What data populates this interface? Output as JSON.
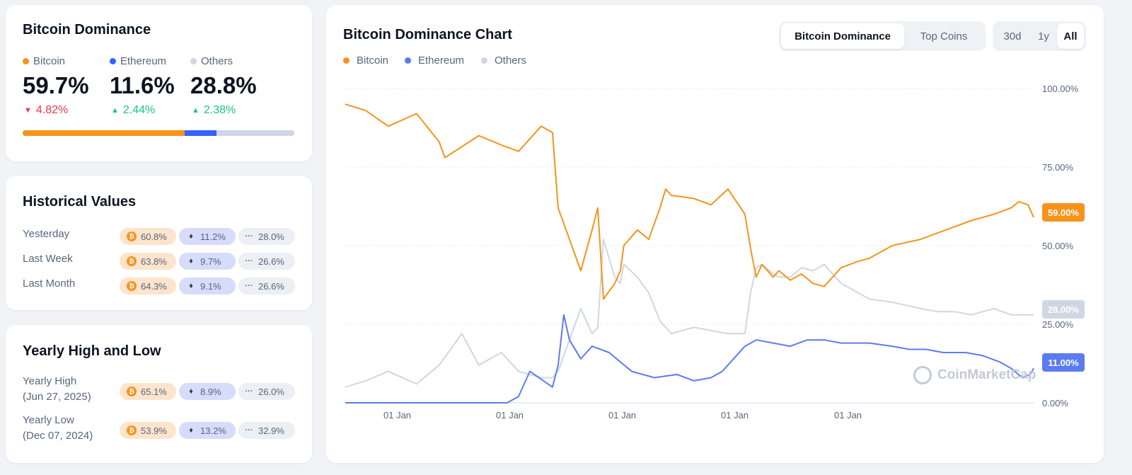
{
  "dominance": {
    "title": "Bitcoin Dominance",
    "items": [
      {
        "name": "Bitcoin",
        "value": "59.7%",
        "change": "4.82%",
        "direction": "down",
        "color": "#f7931a"
      },
      {
        "name": "Ethereum",
        "value": "11.6%",
        "change": "2.44%",
        "direction": "up",
        "color": "#3861fb"
      },
      {
        "name": "Others",
        "value": "28.8%",
        "change": "2.38%",
        "direction": "up",
        "color": "#cfd6e4"
      }
    ],
    "bar_shares": [
      59.7,
      11.6,
      28.8
    ]
  },
  "historical": {
    "title": "Historical Values",
    "rows": [
      {
        "label": "Yesterday",
        "btc": "60.8%",
        "eth": "11.2%",
        "others": "28.0%"
      },
      {
        "label": "Last Week",
        "btc": "63.8%",
        "eth": "9.7%",
        "others": "26.6%"
      },
      {
        "label": "Last Month",
        "btc": "64.3%",
        "eth": "9.1%",
        "others": "26.6%"
      }
    ]
  },
  "yearly": {
    "title": "Yearly High and Low",
    "rows": [
      {
        "label": "Yearly High",
        "date": "(Jun 27, 2025)",
        "btc": "65.1%",
        "eth": "8.9%",
        "others": "26.0%"
      },
      {
        "label": "Yearly Low",
        "date": "(Dec 07, 2024)",
        "btc": "53.9%",
        "eth": "13.2%",
        "others": "32.9%"
      }
    ]
  },
  "chart_panel": {
    "title": "Bitcoin Dominance Chart",
    "view_tabs": [
      "Bitcoin Dominance",
      "Top Coins"
    ],
    "active_view": 0,
    "range_tabs": [
      "30d",
      "1y",
      "All"
    ],
    "active_range": 2,
    "legend": [
      "Bitcoin",
      "Ethereum",
      "Others"
    ],
    "watermark": "CoinMarketCap",
    "badges": {
      "btc": "59.00%",
      "others": "28.00%",
      "eth": "11.00%"
    }
  },
  "icons": {
    "others_pill": "ellipsis-icon",
    "btc_pill": "bitcoin-icon",
    "eth_pill": "ethereum-icon"
  },
  "colors": {
    "bitcoin": "#f7931a",
    "ethereum": "#5b7cf0",
    "others": "#cfd6e4",
    "down": "#ea3943",
    "up": "#16c784"
  },
  "chart_data": {
    "type": "line",
    "ylim": [
      0,
      100
    ],
    "y_ticks": [
      "100.00%",
      "75.00%",
      "50.00%",
      "25.00%",
      "0.00%"
    ],
    "x_tick_labels": [
      "01 Jan",
      "01 Jan",
      "01 Jan",
      "01 Jan",
      "01 Jan"
    ],
    "x_tick_positions": [
      2014,
      2015,
      2016,
      2017,
      2018
    ],
    "x_range": [
      2013.67,
      2019.75
    ],
    "grid": true,
    "legend_position": "top-left",
    "series": [
      {
        "name": "Bitcoin",
        "color": "#f7931a",
        "x": [
          2013.67,
          2013.85,
          2014.05,
          2014.3,
          2014.5,
          2014.55,
          2014.85,
          2015.05,
          2015.2,
          2015.4,
          2015.5,
          2015.55,
          2015.75,
          2015.85,
          2015.9,
          2015.95,
          2016.05,
          2016.1,
          2016.13,
          2016.25,
          2016.35,
          2016.45,
          2016.5,
          2016.55,
          2016.75,
          2016.9,
          2017.05,
          2017.2,
          2017.25,
          2017.3,
          2017.35,
          2017.45,
          2017.5,
          2017.6,
          2017.7,
          2017.8,
          2017.9,
          2018.05,
          2018.2,
          2018.3,
          2018.5,
          2018.75,
          2018.9,
          2019.05,
          2019.2,
          2019.4,
          2019.55,
          2019.62,
          2019.7,
          2019.75
        ],
        "y": [
          95,
          93,
          88,
          92,
          83,
          78,
          85,
          82,
          80,
          88,
          86,
          62,
          42,
          55,
          62,
          33,
          38,
          42,
          50,
          55,
          52,
          62,
          68,
          66,
          65,
          63,
          68,
          60,
          49,
          40,
          44,
          40,
          42,
          39,
          41,
          38,
          37,
          43,
          45,
          46,
          50,
          52,
          54,
          56,
          58,
          60,
          62,
          64,
          63,
          59
        ]
      },
      {
        "name": "Ethereum",
        "color": "#5b7cf0",
        "x": [
          2013.67,
          2014.5,
          2015.1,
          2015.2,
          2015.3,
          2015.5,
          2015.55,
          2015.6,
          2015.65,
          2015.75,
          2015.85,
          2016.0,
          2016.2,
          2016.4,
          2016.6,
          2016.75,
          2016.9,
          2017.0,
          2017.05,
          2017.2,
          2017.3,
          2017.45,
          2017.6,
          2017.75,
          2017.9,
          2018.05,
          2018.3,
          2018.5,
          2018.65,
          2018.8,
          2018.95,
          2019.15,
          2019.3,
          2019.45,
          2019.55,
          2019.65,
          2019.72,
          2019.75
        ],
        "y": [
          0,
          0,
          0,
          2,
          10,
          5,
          12,
          28,
          20,
          14,
          18,
          16,
          10,
          8,
          9,
          7,
          8,
          10,
          12,
          18,
          20,
          19,
          18,
          20,
          20,
          19,
          19,
          18,
          17,
          17,
          16,
          16,
          15,
          13,
          11,
          8,
          9,
          11
        ]
      },
      {
        "name": "Others",
        "color": "#cfd6e4",
        "x": [
          2013.67,
          2013.85,
          2014.05,
          2014.3,
          2014.5,
          2014.7,
          2014.85,
          2015.05,
          2015.2,
          2015.4,
          2015.5,
          2015.55,
          2015.75,
          2015.85,
          2015.9,
          2015.95,
          2016.05,
          2016.1,
          2016.13,
          2016.25,
          2016.35,
          2016.45,
          2016.5,
          2016.55,
          2016.75,
          2016.9,
          2017.05,
          2017.2,
          2017.25,
          2017.3,
          2017.35,
          2017.45,
          2017.5,
          2017.6,
          2017.7,
          2017.8,
          2017.9,
          2018.05,
          2018.2,
          2018.3,
          2018.5,
          2018.75,
          2018.9,
          2019.05,
          2019.2,
          2019.4,
          2019.55,
          2019.62,
          2019.7,
          2019.75
        ],
        "y": [
          5,
          7,
          10,
          6,
          12,
          22,
          12,
          16,
          10,
          8,
          8,
          10,
          30,
          22,
          24,
          52,
          40,
          38,
          44,
          40,
          35,
          26,
          24,
          22,
          24,
          23,
          22,
          22,
          35,
          43,
          44,
          41,
          40,
          40,
          43,
          42,
          44,
          38,
          35,
          33,
          32,
          30,
          29,
          29,
          28,
          30,
          28,
          28,
          28,
          28
        ]
      }
    ]
  }
}
